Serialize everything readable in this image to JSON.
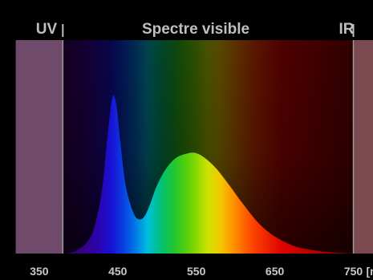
{
  "chart_data": {
    "type": "area",
    "title": "",
    "xlabel": "",
    "ylabel": "",
    "x_unit": "[nm]",
    "xlim": [
      300,
      775
    ],
    "ylim": [
      0,
      1
    ],
    "x_ticks": [
      350,
      450,
      550,
      650,
      750
    ],
    "grid": false,
    "bands": [
      {
        "label": "UV",
        "from": 320,
        "to": 380,
        "color": "#6f4a6a"
      },
      {
        "label": "Spectre visible",
        "from": 380,
        "to": 750
      },
      {
        "label": "IR",
        "from": 750,
        "to": 780,
        "color": "#7a4a50"
      }
    ],
    "band_boundaries": [
      380,
      750
    ],
    "series": [
      {
        "x": [
          380,
          395,
          410,
          420,
          430,
          437,
          443,
          448,
          453,
          460,
          470,
          478,
          485,
          492,
          500,
          512,
          525,
          540,
          550,
          560,
          575,
          590,
          610,
          630,
          650,
          675,
          700,
          725,
          750
        ],
        "values": [
          0.0,
          0.01,
          0.05,
          0.12,
          0.3,
          0.55,
          0.73,
          0.7,
          0.53,
          0.32,
          0.19,
          0.16,
          0.18,
          0.24,
          0.32,
          0.4,
          0.45,
          0.47,
          0.47,
          0.45,
          0.4,
          0.33,
          0.23,
          0.14,
          0.08,
          0.035,
          0.015,
          0.005,
          0.0
        ]
      }
    ]
  }
}
